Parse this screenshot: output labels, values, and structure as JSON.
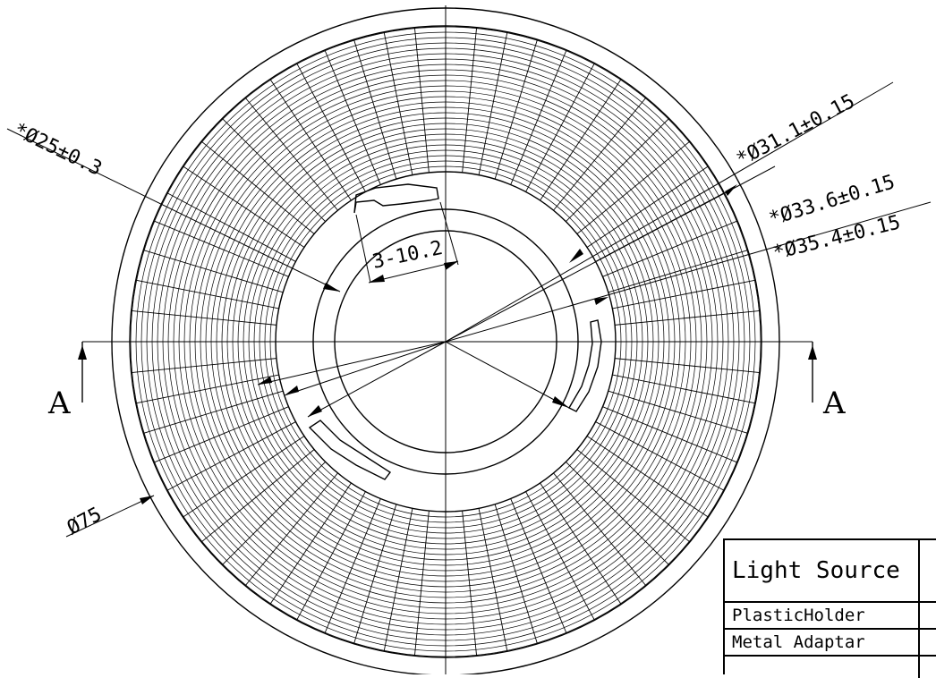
{
  "drawing": {
    "section_marks": [
      "A",
      "A"
    ],
    "dimensions": {
      "d25": "*Ø25±0.3",
      "d31": "*Ø31.1±0.15",
      "d33": "*Ø33.6±0.15",
      "d35": "*Ø35.4±0.15",
      "d75": "Ø75",
      "slot": "3-10.2"
    }
  },
  "title_block": {
    "rows": [
      "Light Source",
      "PlasticHolder",
      "Metal Adaptar",
      ""
    ]
  }
}
